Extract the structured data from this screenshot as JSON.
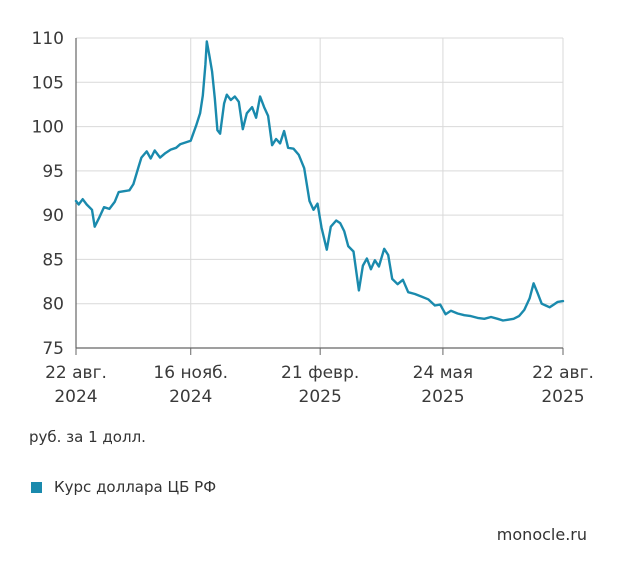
{
  "chart_data": {
    "type": "line",
    "ylim": [
      75,
      110
    ],
    "ylabel": "руб. за 1 долл.",
    "y_ticks": [
      "110",
      "105",
      "100",
      "95",
      "90",
      "85",
      "80",
      "75"
    ],
    "x_ticks": [
      {
        "line1": "22 авг.",
        "line2": "2024"
      },
      {
        "line1": "16 нояб.",
        "line2": "2024"
      },
      {
        "line1": "21 февр.",
        "line2": "2025"
      },
      {
        "line1": "24 мая",
        "line2": "2025"
      },
      {
        "line1": "22 авг.",
        "line2": "2025"
      }
    ],
    "grid": true,
    "legend_position": "bottom-left",
    "series": [
      {
        "name": "Курс доллара ЦБ РФ",
        "color": "#1a8aad",
        "points": [
          [
            "2024-08-22",
            91.6
          ],
          [
            "2024-08-24",
            91.2
          ],
          [
            "2024-08-27",
            91.8
          ],
          [
            "2024-08-30",
            91.2
          ],
          [
            "2024-09-03",
            90.6
          ],
          [
            "2024-09-05",
            88.7
          ],
          [
            "2024-09-08",
            89.6
          ],
          [
            "2024-09-12",
            90.9
          ],
          [
            "2024-09-16",
            90.7
          ],
          [
            "2024-09-20",
            91.5
          ],
          [
            "2024-09-23",
            92.6
          ],
          [
            "2024-09-27",
            92.7
          ],
          [
            "2024-10-01",
            92.8
          ],
          [
            "2024-10-04",
            93.5
          ],
          [
            "2024-10-08",
            95.5
          ],
          [
            "2024-10-10",
            96.5
          ],
          [
            "2024-10-14",
            97.2
          ],
          [
            "2024-10-17",
            96.4
          ],
          [
            "2024-10-20",
            97.3
          ],
          [
            "2024-10-24",
            96.5
          ],
          [
            "2024-10-28",
            97.0
          ],
          [
            "2024-11-01",
            97.4
          ],
          [
            "2024-11-05",
            97.6
          ],
          [
            "2024-11-08",
            98.0
          ],
          [
            "2024-11-12",
            98.2
          ],
          [
            "2024-11-16",
            98.4
          ],
          [
            "2024-11-20",
            100.1
          ],
          [
            "2024-11-23",
            101.5
          ],
          [
            "2024-11-25",
            103.5
          ],
          [
            "2024-11-27",
            107.0
          ],
          [
            "2024-11-28",
            109.6
          ],
          [
            "2024-11-30",
            108.0
          ],
          [
            "2024-12-02",
            106.2
          ],
          [
            "2024-12-04",
            103.2
          ],
          [
            "2024-12-06",
            99.6
          ],
          [
            "2024-12-08",
            99.2
          ],
          [
            "2024-12-11",
            102.6
          ],
          [
            "2024-12-13",
            103.6
          ],
          [
            "2024-12-16",
            103.0
          ],
          [
            "2024-12-19",
            103.4
          ],
          [
            "2024-12-22",
            102.8
          ],
          [
            "2024-12-25",
            99.7
          ],
          [
            "2024-12-28",
            101.5
          ],
          [
            "2025-01-01",
            102.2
          ],
          [
            "2025-01-04",
            101.0
          ],
          [
            "2025-01-07",
            103.4
          ],
          [
            "2025-01-10",
            102.2
          ],
          [
            "2025-01-13",
            101.2
          ],
          [
            "2025-01-16",
            97.9
          ],
          [
            "2025-01-19",
            98.6
          ],
          [
            "2025-01-22",
            98.1
          ],
          [
            "2025-01-25",
            99.5
          ],
          [
            "2025-01-28",
            97.6
          ],
          [
            "2025-02-01",
            97.5
          ],
          [
            "2025-02-05",
            96.8
          ],
          [
            "2025-02-09",
            95.3
          ],
          [
            "2025-02-13",
            91.6
          ],
          [
            "2025-02-16",
            90.6
          ],
          [
            "2025-02-19",
            91.3
          ],
          [
            "2025-02-22",
            88.6
          ],
          [
            "2025-02-26",
            86.1
          ],
          [
            "2025-03-01",
            88.7
          ],
          [
            "2025-03-05",
            89.4
          ],
          [
            "2025-03-08",
            89.1
          ],
          [
            "2025-03-11",
            88.2
          ],
          [
            "2025-03-14",
            86.5
          ],
          [
            "2025-03-18",
            85.9
          ],
          [
            "2025-03-22",
            81.5
          ],
          [
            "2025-03-25",
            84.3
          ],
          [
            "2025-03-28",
            85.1
          ],
          [
            "2025-03-31",
            83.9
          ],
          [
            "2025-04-03",
            84.9
          ],
          [
            "2025-04-06",
            84.2
          ],
          [
            "2025-04-10",
            86.2
          ],
          [
            "2025-04-13",
            85.5
          ],
          [
            "2025-04-16",
            82.8
          ],
          [
            "2025-04-20",
            82.2
          ],
          [
            "2025-04-24",
            82.7
          ],
          [
            "2025-04-28",
            81.3
          ],
          [
            "2025-05-03",
            81.1
          ],
          [
            "2025-05-08",
            80.8
          ],
          [
            "2025-05-13",
            80.5
          ],
          [
            "2025-05-18",
            79.8
          ],
          [
            "2025-05-22",
            79.9
          ],
          [
            "2025-05-26",
            78.8
          ],
          [
            "2025-05-30",
            79.2
          ],
          [
            "2025-06-04",
            78.9
          ],
          [
            "2025-06-09",
            78.7
          ],
          [
            "2025-06-14",
            78.6
          ],
          [
            "2025-06-19",
            78.4
          ],
          [
            "2025-06-24",
            78.3
          ],
          [
            "2025-06-29",
            78.5
          ],
          [
            "2025-07-04",
            78.3
          ],
          [
            "2025-07-08",
            78.1
          ],
          [
            "2025-07-12",
            78.2
          ],
          [
            "2025-07-16",
            78.3
          ],
          [
            "2025-07-20",
            78.6
          ],
          [
            "2025-07-24",
            79.3
          ],
          [
            "2025-07-28",
            80.6
          ],
          [
            "2025-07-31",
            82.3
          ],
          [
            "2025-08-03",
            81.2
          ],
          [
            "2025-08-06",
            80.0
          ],
          [
            "2025-08-09",
            79.8
          ],
          [
            "2025-08-12",
            79.6
          ],
          [
            "2025-08-15",
            79.9
          ],
          [
            "2025-08-18",
            80.2
          ],
          [
            "2025-08-22",
            80.3
          ]
        ]
      }
    ]
  },
  "footer": {
    "unit_label": "руб. за 1 долл.",
    "legend_label": "Курс доллара ЦБ РФ",
    "watermark": "monocle.ru"
  }
}
